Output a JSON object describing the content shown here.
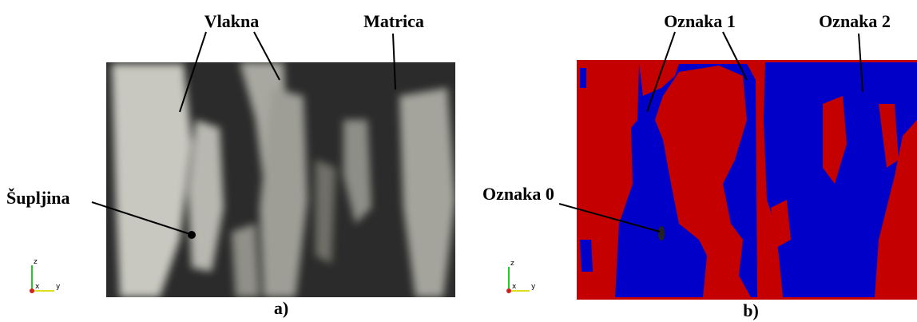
{
  "panels": [
    {
      "caption": "a)",
      "labels": [
        "Vlakna",
        "Matrica",
        "Šupljina"
      ],
      "axes": [
        "z",
        "x",
        "y"
      ]
    },
    {
      "caption": "b)",
      "labels": [
        "Oznaka 1",
        "Oznaka 2",
        "Oznaka 0"
      ],
      "axes": [
        "z",
        "x",
        "y"
      ]
    }
  ]
}
